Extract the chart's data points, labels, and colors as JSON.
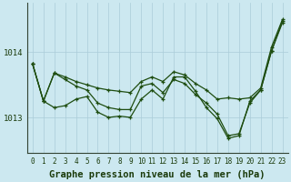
{
  "title": "Graphe pression niveau de la mer (hPa)",
  "background_color": "#cce8f0",
  "line_color": "#1e4d10",
  "grid_color": "#aaccd8",
  "ylim": [
    1012.45,
    1014.75
  ],
  "yticks": [
    1013,
    1014
  ],
  "xlim": [
    -0.5,
    23.5
  ],
  "xticks": [
    0,
    1,
    2,
    3,
    4,
    5,
    6,
    7,
    8,
    9,
    10,
    11,
    12,
    13,
    14,
    15,
    16,
    17,
    18,
    19,
    20,
    21,
    22,
    23
  ],
  "series": [
    [
      1013.82,
      1013.25,
      1013.68,
      1013.62,
      1013.55,
      1013.48,
      1013.28,
      1013.22,
      1013.2,
      1013.18,
      1013.65,
      1013.62,
      1013.52,
      1013.72,
      1013.65,
      1013.48,
      1013.35,
      1013.2,
      1013.28,
      1013.25,
      1013.28,
      1013.42,
      1014.1,
      1014.48
    ],
    [
      1013.82,
      1013.25,
      1013.68,
      1013.58,
      1013.5,
      1013.42,
      1013.25,
      1013.2,
      1013.18,
      1013.18,
      1013.55,
      1013.55,
      1013.42,
      1013.6,
      1013.52,
      1013.38,
      1013.28,
      1013.18,
      1012.72,
      1012.78,
      1013.25,
      1013.42,
      1014.0,
      1014.45
    ],
    [
      1013.82,
      1013.25,
      1013.42,
      1013.32,
      1013.28,
      1013.3,
      1013.08,
      1013.0,
      1013.05,
      1013.05,
      1013.28,
      1013.42,
      1013.3,
      1013.62,
      1013.62,
      1013.42,
      1013.18,
      1013.02,
      1012.72,
      1012.78,
      1013.28,
      1013.45,
      1014.05,
      1014.5
    ],
    [
      1013.82,
      1013.25,
      1013.15,
      1013.2,
      1013.28,
      1013.3,
      1013.08,
      1013.0,
      1013.05,
      1013.05,
      1013.28,
      1013.42,
      1013.3,
      1013.65,
      1013.65,
      1013.42,
      1013.18,
      1013.02,
      1012.72,
      1012.78,
      1013.28,
      1013.45,
      1014.05,
      1014.5
    ]
  ],
  "title_fontsize": 7.5,
  "tick_fontsize": 5.5,
  "ytick_fontsize": 6.5
}
